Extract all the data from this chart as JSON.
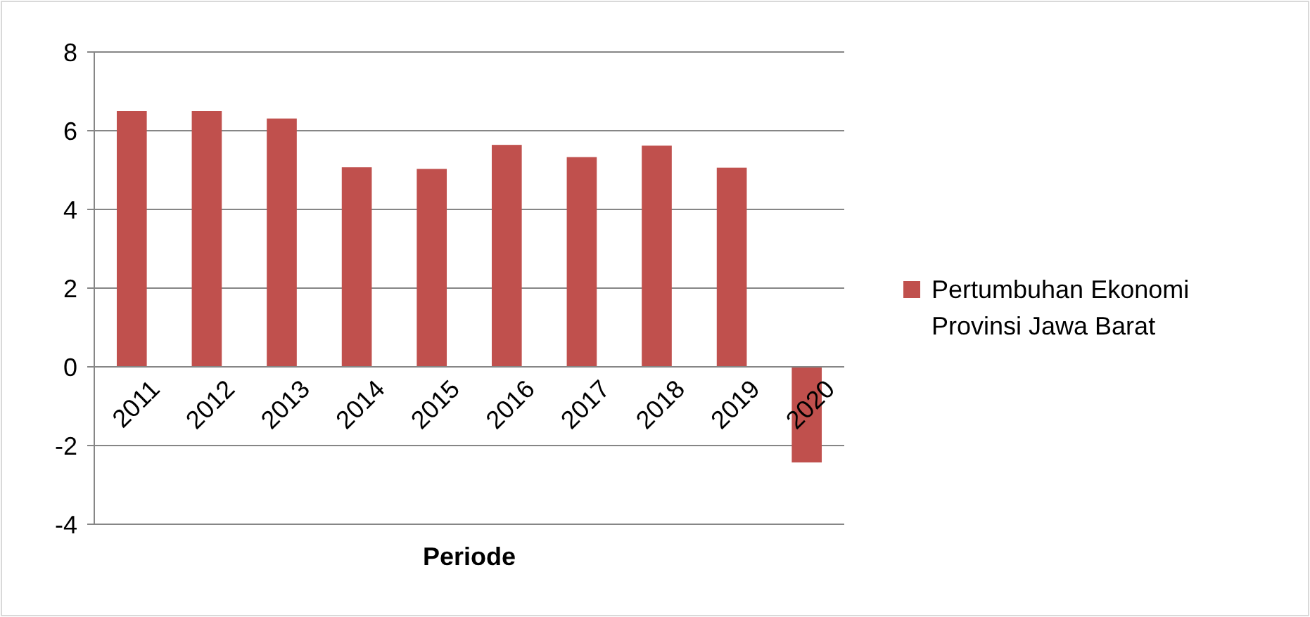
{
  "chart_data": {
    "type": "bar",
    "xlabel": "Periode",
    "categories": [
      "2011",
      "2012",
      "2013",
      "2014",
      "2015",
      "2016",
      "2017",
      "2018",
      "2019",
      "2020"
    ],
    "series": [
      {
        "name": "Pertumbuhan Ekonomi Provinsi Jawa Barat",
        "color": "#c0504d",
        "values": [
          6.5,
          6.5,
          6.31,
          5.07,
          5.03,
          5.64,
          5.33,
          5.62,
          5.06,
          -2.43
        ]
      }
    ],
    "ylim": [
      -4,
      8
    ],
    "yticks": [
      -4,
      -2,
      0,
      2,
      4,
      6,
      8
    ],
    "grid": "y",
    "legend": "right"
  }
}
